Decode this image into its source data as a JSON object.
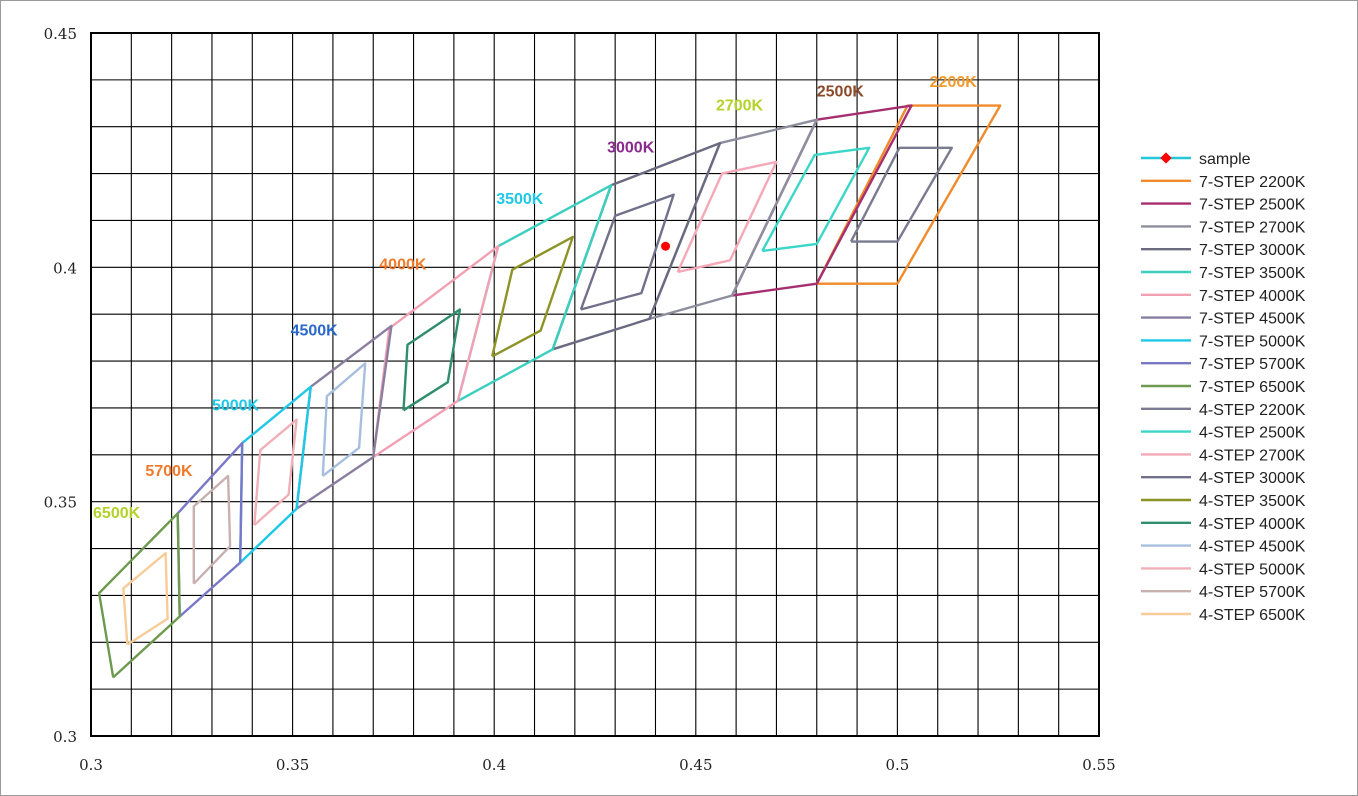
{
  "chart_data": {
    "type": "line",
    "title": "",
    "xlabel": "",
    "ylabel": "",
    "xlim": [
      0.3,
      0.55
    ],
    "ylim": [
      0.3,
      0.45
    ],
    "x_ticks": [
      0.3,
      0.35,
      0.4,
      0.45,
      0.5,
      0.55
    ],
    "x_tick_labels": [
      "0.3",
      "0.35",
      "0.4",
      "0.45",
      "0.5",
      "0.55"
    ],
    "y_ticks": [
      0.3,
      0.35,
      0.4,
      0.45
    ],
    "y_tick_labels": [
      "0.3",
      "0.35",
      "0.4",
      "0.45"
    ],
    "grid": true,
    "grid_x_step": 0.01,
    "grid_y_step": 0.01,
    "legend_position": "right",
    "sample": {
      "name": "sample",
      "x": 0.4425,
      "y": 0.4045,
      "color": "#ff0000"
    },
    "series": [
      {
        "name": "7-STEP 2200K",
        "color": "#f08a2a",
        "points": [
          [
            0.48,
            0.3965
          ],
          [
            0.5,
            0.3965
          ],
          [
            0.5255,
            0.4345
          ],
          [
            0.5025,
            0.4345
          ],
          [
            0.48,
            0.3965
          ]
        ]
      },
      {
        "name": "7-STEP 2500K",
        "color": "#a62f70",
        "points": [
          [
            0.459,
            0.394
          ],
          [
            0.48,
            0.3965
          ],
          [
            0.5035,
            0.4345
          ],
          [
            0.48,
            0.4315
          ],
          [
            0.459,
            0.394
          ]
        ]
      },
      {
        "name": "7-STEP 2700K",
        "color": "#8e8e9e",
        "points": [
          [
            0.4385,
            0.389
          ],
          [
            0.459,
            0.394
          ],
          [
            0.48,
            0.4315
          ],
          [
            0.456,
            0.4265
          ],
          [
            0.4385,
            0.389
          ]
        ]
      },
      {
        "name": "7-STEP 3000K",
        "color": "#6a6a80",
        "points": [
          [
            0.4145,
            0.3825
          ],
          [
            0.4385,
            0.389
          ],
          [
            0.456,
            0.4265
          ],
          [
            0.429,
            0.4175
          ],
          [
            0.4145,
            0.3825
          ]
        ]
      },
      {
        "name": "7-STEP 3500K",
        "color": "#3ccfc0",
        "points": [
          [
            0.391,
            0.3715
          ],
          [
            0.4145,
            0.3825
          ],
          [
            0.429,
            0.4175
          ],
          [
            0.401,
            0.4045
          ],
          [
            0.391,
            0.3715
          ]
        ]
      },
      {
        "name": "7-STEP 4000K",
        "color": "#f2a0b4",
        "points": [
          [
            0.37,
            0.3595
          ],
          [
            0.391,
            0.3715
          ],
          [
            0.401,
            0.4045
          ],
          [
            0.374,
            0.387
          ],
          [
            0.37,
            0.3595
          ]
        ]
      },
      {
        "name": "7-STEP 4500K",
        "color": "#8a7ea0",
        "points": [
          [
            0.351,
            0.3485
          ],
          [
            0.37,
            0.3595
          ],
          [
            0.3745,
            0.3875
          ],
          [
            0.3545,
            0.3745
          ],
          [
            0.351,
            0.3485
          ]
        ]
      },
      {
        "name": "7-STEP 5000K",
        "color": "#1ec8e6",
        "points": [
          [
            0.337,
            0.337
          ],
          [
            0.351,
            0.3485
          ],
          [
            0.3545,
            0.3745
          ],
          [
            0.3375,
            0.3625
          ],
          [
            0.337,
            0.337
          ]
        ]
      },
      {
        "name": "7-STEP 5700K",
        "color": "#7878c8",
        "points": [
          [
            0.322,
            0.3255
          ],
          [
            0.337,
            0.337
          ],
          [
            0.3375,
            0.3625
          ],
          [
            0.3215,
            0.3475
          ],
          [
            0.322,
            0.3255
          ]
        ]
      },
      {
        "name": "7-STEP 6500K",
        "color": "#6e9a50",
        "points": [
          [
            0.3055,
            0.3125
          ],
          [
            0.322,
            0.3255
          ],
          [
            0.3215,
            0.3475
          ],
          [
            0.302,
            0.3305
          ],
          [
            0.3055,
            0.3125
          ]
        ]
      },
      {
        "name": "4-STEP 2200K",
        "color": "#7a7a90",
        "points": [
          [
            0.4885,
            0.4055
          ],
          [
            0.5,
            0.4055
          ],
          [
            0.5135,
            0.4255
          ],
          [
            0.5005,
            0.4255
          ],
          [
            0.4885,
            0.4055
          ]
        ]
      },
      {
        "name": "4-STEP 2500K",
        "color": "#3cd6c8",
        "points": [
          [
            0.4665,
            0.4035
          ],
          [
            0.48,
            0.405
          ],
          [
            0.493,
            0.4255
          ],
          [
            0.4795,
            0.424
          ],
          [
            0.4665,
            0.4035
          ]
        ]
      },
      {
        "name": "4-STEP 2700K",
        "color": "#f4a8b8",
        "points": [
          [
            0.4455,
            0.399
          ],
          [
            0.4585,
            0.4015
          ],
          [
            0.47,
            0.4225
          ],
          [
            0.4565,
            0.42
          ],
          [
            0.4455,
            0.399
          ]
        ]
      },
      {
        "name": "4-STEP 3000K",
        "color": "#70708a",
        "points": [
          [
            0.4215,
            0.391
          ],
          [
            0.4365,
            0.3945
          ],
          [
            0.4445,
            0.4155
          ],
          [
            0.43,
            0.411
          ],
          [
            0.4215,
            0.391
          ]
        ]
      },
      {
        "name": "4-STEP 3500K",
        "color": "#8c9428",
        "points": [
          [
            0.3995,
            0.381
          ],
          [
            0.4115,
            0.3865
          ],
          [
            0.4195,
            0.4065
          ],
          [
            0.4045,
            0.3995
          ],
          [
            0.3995,
            0.381
          ]
        ]
      },
      {
        "name": "4-STEP 4000K",
        "color": "#2e8e6e",
        "points": [
          [
            0.3775,
            0.3695
          ],
          [
            0.3885,
            0.3755
          ],
          [
            0.3915,
            0.391
          ],
          [
            0.3785,
            0.3835
          ],
          [
            0.3775,
            0.3695
          ]
        ]
      },
      {
        "name": "4-STEP 4500K",
        "color": "#a8bede",
        "points": [
          [
            0.3575,
            0.3555
          ],
          [
            0.3665,
            0.3615
          ],
          [
            0.368,
            0.3795
          ],
          [
            0.3585,
            0.3725
          ],
          [
            0.3575,
            0.3555
          ]
        ]
      },
      {
        "name": "4-STEP 5000K",
        "color": "#f0b0b8",
        "points": [
          [
            0.3405,
            0.345
          ],
          [
            0.349,
            0.3515
          ],
          [
            0.351,
            0.3675
          ],
          [
            0.342,
            0.361
          ],
          [
            0.3405,
            0.345
          ]
        ]
      },
      {
        "name": "4-STEP 5700K",
        "color": "#c8b0b0",
        "points": [
          [
            0.3255,
            0.3325
          ],
          [
            0.3345,
            0.3405
          ],
          [
            0.334,
            0.3555
          ],
          [
            0.3255,
            0.349
          ],
          [
            0.3255,
            0.3325
          ]
        ]
      },
      {
        "name": "4-STEP 6500K",
        "color": "#f8cc98",
        "points": [
          [
            0.309,
            0.3195
          ],
          [
            0.319,
            0.325
          ],
          [
            0.3185,
            0.339
          ],
          [
            0.308,
            0.3315
          ],
          [
            0.309,
            0.3195
          ]
        ]
      }
    ],
    "annotations": [
      {
        "text": "2200K",
        "x": 0.508,
        "y": 0.4385,
        "color": "#f29a2a"
      },
      {
        "text": "2500K",
        "x": 0.48,
        "y": 0.4365,
        "color": "#8a4a2a"
      },
      {
        "text": "2700K",
        "x": 0.455,
        "y": 0.4335,
        "color": "#b4d22a"
      },
      {
        "text": "3000K",
        "x": 0.428,
        "y": 0.4245,
        "color": "#8a2a8e"
      },
      {
        "text": "3500K",
        "x": 0.4005,
        "y": 0.4135,
        "color": "#1ec8e6"
      },
      {
        "text": "4000K",
        "x": 0.3715,
        "y": 0.3995,
        "color": "#f07a2a"
      },
      {
        "text": "4500K",
        "x": 0.3495,
        "y": 0.3855,
        "color": "#2a68c8"
      },
      {
        "text": "5000K",
        "x": 0.33,
        "y": 0.3695,
        "color": "#1ec8e6"
      },
      {
        "text": "5700K",
        "x": 0.3135,
        "y": 0.3555,
        "color": "#f07a2a"
      },
      {
        "text": "6500K",
        "x": 0.3005,
        "y": 0.3465,
        "color": "#b4d22a"
      }
    ]
  }
}
